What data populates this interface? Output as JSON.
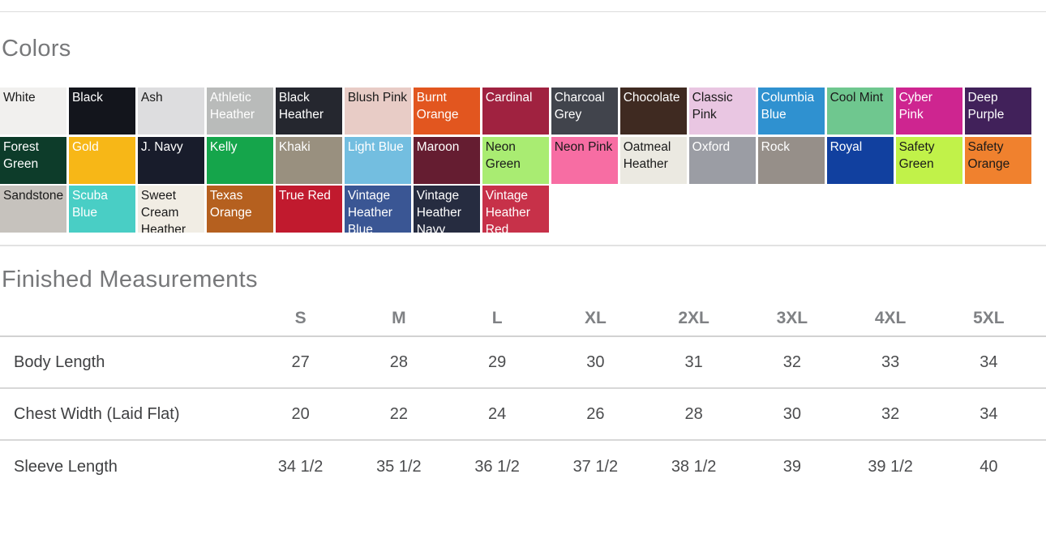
{
  "colors_section": {
    "title": "Colors",
    "swatches": [
      {
        "name": "White",
        "bg": "#f1f0ee",
        "fg": "#1a1a1a"
      },
      {
        "name": "Black",
        "bg": "#13151c",
        "fg": "#ffffff"
      },
      {
        "name": "Ash",
        "bg": "#dddddf",
        "fg": "#1a1a1a"
      },
      {
        "name": "Athletic Heather",
        "bg": "#b9bbba",
        "fg": "#ffffff"
      },
      {
        "name": "Black Heather",
        "bg": "#25272f",
        "fg": "#ffffff"
      },
      {
        "name": "Blush Pink",
        "bg": "#e8ccc6",
        "fg": "#1a1a1a"
      },
      {
        "name": "Burnt Orange",
        "bg": "#e2561f",
        "fg": "#ffffff"
      },
      {
        "name": "Cardinal",
        "bg": "#a02240",
        "fg": "#ffffff"
      },
      {
        "name": "Charcoal Grey",
        "bg": "#41444c",
        "fg": "#ffffff"
      },
      {
        "name": "Chocolate",
        "bg": "#3f2a21",
        "fg": "#ffffff"
      },
      {
        "name": "Classic Pink",
        "bg": "#e9c6e2",
        "fg": "#1a1a1a"
      },
      {
        "name": "Columbia Blue",
        "bg": "#2f91d0",
        "fg": "#ffffff"
      },
      {
        "name": "Cool Mint",
        "bg": "#6fc78f",
        "fg": "#1a1a1a"
      },
      {
        "name": "Cyber Pink",
        "bg": "#ce2590",
        "fg": "#ffffff"
      },
      {
        "name": "Deep Purple",
        "bg": "#41215a",
        "fg": "#ffffff"
      },
      {
        "name": "Forest Green",
        "bg": "#0d3c2a",
        "fg": "#ffffff"
      },
      {
        "name": "Gold",
        "bg": "#f7b717",
        "fg": "#ffffff"
      },
      {
        "name": "J. Navy",
        "bg": "#181c2b",
        "fg": "#ffffff"
      },
      {
        "name": "Kelly",
        "bg": "#15a54b",
        "fg": "#ffffff"
      },
      {
        "name": "Khaki",
        "bg": "#99907f",
        "fg": "#ffffff"
      },
      {
        "name": "Light Blue",
        "bg": "#73bee0",
        "fg": "#ffffff"
      },
      {
        "name": "Maroon",
        "bg": "#651d31",
        "fg": "#ffffff"
      },
      {
        "name": "Neon Green",
        "bg": "#a9ec72",
        "fg": "#1a1a1a"
      },
      {
        "name": "Neon Pink",
        "bg": "#f76da3",
        "fg": "#1a1a1a"
      },
      {
        "name": "Oatmeal Heather",
        "bg": "#ebe9e1",
        "fg": "#1a1a1a"
      },
      {
        "name": "Oxford",
        "bg": "#9b9da4",
        "fg": "#ffffff"
      },
      {
        "name": "Rock",
        "bg": "#968f89",
        "fg": "#ffffff"
      },
      {
        "name": "Royal",
        "bg": "#11409f",
        "fg": "#ffffff"
      },
      {
        "name": "Safety Green",
        "bg": "#c1f249",
        "fg": "#1a1a1a"
      },
      {
        "name": "Safety Orange",
        "bg": "#f0812e",
        "fg": "#1a1a1a"
      },
      {
        "name": "Sandstone",
        "bg": "#c6c2bd",
        "fg": "#1a1a1a"
      },
      {
        "name": "Scuba Blue",
        "bg": "#49cec5",
        "fg": "#ffffff"
      },
      {
        "name": "Sweet Cream Heather",
        "bg": "#f1ede4",
        "fg": "#1a1a1a"
      },
      {
        "name": "Texas Orange",
        "bg": "#b5601f",
        "fg": "#ffffff"
      },
      {
        "name": "True Red",
        "bg": "#c11a2e",
        "fg": "#ffffff"
      },
      {
        "name": "Vintage Heather Blue",
        "bg": "#3a5694",
        "fg": "#ffffff"
      },
      {
        "name": "Vintage Heather Navy",
        "bg": "#262c40",
        "fg": "#ffffff"
      },
      {
        "name": "Vintage Heather Red",
        "bg": "#c73149",
        "fg": "#ffffff"
      }
    ]
  },
  "measurements_section": {
    "title": "Finished Measurements",
    "table": {
      "size_headers": [
        "S",
        "M",
        "L",
        "XL",
        "2XL",
        "3XL",
        "4XL",
        "5XL"
      ],
      "rows": [
        {
          "label": "Body Length",
          "values": [
            "27",
            "28",
            "29",
            "30",
            "31",
            "32",
            "33",
            "34"
          ]
        },
        {
          "label": "Chest Width (Laid Flat)",
          "values": [
            "20",
            "22",
            "24",
            "26",
            "28",
            "30",
            "32",
            "34"
          ]
        },
        {
          "label": "Sleeve Length",
          "values": [
            "34 1/2",
            "35 1/2",
            "36 1/2",
            "37 1/2",
            "38 1/2",
            "39",
            "39 1/2",
            "40"
          ]
        }
      ]
    }
  }
}
